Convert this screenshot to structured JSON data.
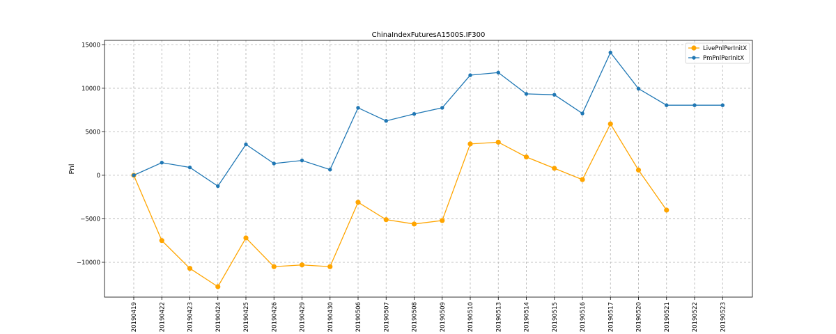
{
  "chart_data": {
    "type": "line",
    "title": "ChinaIndexFuturesA1500S.IF300",
    "xlabel": "",
    "ylabel": "Pnl",
    "ylim": [
      -14000,
      15500
    ],
    "yticks": [
      -10000,
      -5000,
      0,
      5000,
      10000,
      15000
    ],
    "ytick_labels": [
      "−10000",
      "−5000",
      "0",
      "5000",
      "10000",
      "15000"
    ],
    "grid": true,
    "legend_position": "top-right",
    "categories": [
      "20190419",
      "20190422",
      "20190423",
      "20190424",
      "20190425",
      "20190426",
      "20190429",
      "20190430",
      "20190506",
      "20190507",
      "20190508",
      "20190509",
      "20190510",
      "20190513",
      "20190514",
      "20190515",
      "20190516",
      "20190517",
      "20190520",
      "20190521",
      "20190522",
      "20190523"
    ],
    "series": [
      {
        "name": "LivePnlPerInitX",
        "color": "#ffa500",
        "marker_size": 3.6,
        "values": [
          0,
          -7500,
          -10700,
          -12800,
          -7200,
          -10500,
          -10300,
          -10500,
          -3100,
          -5100,
          -5600,
          -5200,
          3600,
          3800,
          2100,
          800,
          -500,
          5900,
          600,
          -4000,
          null,
          null
        ]
      },
      {
        "name": "PmPnlPerInitX",
        "color": "#1f77b4",
        "marker_size": 2.7,
        "values": [
          0,
          1450,
          900,
          -1250,
          3550,
          1350,
          1700,
          650,
          7750,
          6250,
          7050,
          7750,
          11500,
          11800,
          9350,
          9250,
          7100,
          14100,
          9950,
          8050,
          8050,
          8050
        ]
      }
    ]
  }
}
